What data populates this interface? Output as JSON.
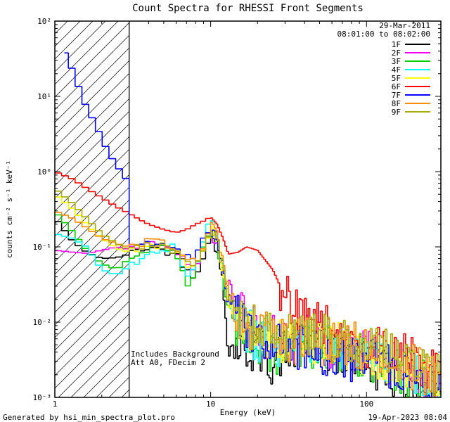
{
  "title": "Count Spectra for RHESSI Front Segments",
  "annotations": {
    "date": "29-Mar-2011",
    "time_range": "08:01:00 to 08:02:00",
    "note_line1": "Includes Background",
    "note_line2": "Att A0, FDecim 2"
  },
  "footer": {
    "left": "Generated by hsi_min_spectra_plot.pro",
    "right": "19-Apr-2023 08:04"
  },
  "axes": {
    "xlabel": "Energy (keV)",
    "ylabel": "counts cm⁻² s⁻¹ keV⁻¹"
  },
  "chart_data": {
    "type": "line",
    "title": "Count Spectra for RHESSI Front Segments",
    "x_scale": "log",
    "y_scale": "log",
    "xlim": [
      1,
      300
    ],
    "ylim": [
      0.001,
      100
    ],
    "x_ticks": [
      1,
      10,
      100
    ],
    "y_tick_exponents": [
      -3,
      -2,
      -1,
      0,
      1,
      2
    ],
    "xlabel": "Energy (keV)",
    "ylabel": "counts cm⁻² s⁻¹ keV⁻¹",
    "hatch_region_kev": [
      1,
      3
    ],
    "legend_position": "upper right",
    "bins": [
      {
        "from": 1,
        "to": 3,
        "n": 11
      },
      {
        "from": 3,
        "to": 10,
        "n": 16
      },
      {
        "from": 10,
        "to": 30,
        "n": 42
      },
      {
        "from": 30,
        "to": 100,
        "n": 46
      },
      {
        "from": 100,
        "to": 300,
        "n": 40
      }
    ],
    "noise": {
      "seed": 42,
      "default_from_kev": 3,
      "levels": [
        {
          "from": 3,
          "dex": 0.05
        },
        {
          "from": 10,
          "dex": 0.12
        },
        {
          "from": 14,
          "dex": 0.32
        }
      ]
    },
    "series": [
      {
        "name": "1F",
        "color": "#000000",
        "points": [
          [
            1,
            0.25
          ],
          [
            1.3,
            0.12
          ],
          [
            1.6,
            0.085
          ],
          [
            2,
            0.07
          ],
          [
            2.5,
            0.072
          ],
          [
            3,
            0.08
          ],
          [
            3.5,
            0.09
          ],
          [
            4,
            0.1
          ],
          [
            5,
            0.09
          ],
          [
            6,
            0.08
          ],
          [
            7,
            0.05
          ],
          [
            8,
            0.04
          ],
          [
            9,
            0.08
          ],
          [
            10,
            0.15
          ],
          [
            11,
            0.1
          ],
          [
            12,
            0.03
          ],
          [
            13,
            0.0045
          ],
          [
            15,
            0.005
          ],
          [
            17,
            0.004
          ],
          [
            20,
            0.0045
          ],
          [
            25,
            0.003
          ],
          [
            30,
            0.004
          ],
          [
            40,
            0.005
          ],
          [
            60,
            0.004
          ],
          [
            80,
            0.0035
          ],
          [
            100,
            0.003
          ],
          [
            150,
            0.002
          ],
          [
            200,
            0.0015
          ],
          [
            300,
            0.0011
          ]
        ]
      },
      {
        "name": "2F",
        "color": "#ff00ff",
        "points": [
          [
            1,
            0.09
          ],
          [
            1.3,
            0.085
          ],
          [
            1.6,
            0.082
          ],
          [
            2,
            0.09
          ],
          [
            2.5,
            0.1
          ],
          [
            3,
            0.092
          ],
          [
            3.5,
            0.1
          ],
          [
            4,
            0.11
          ],
          [
            5,
            0.1
          ],
          [
            6,
            0.09
          ],
          [
            7,
            0.06
          ],
          [
            8,
            0.05
          ],
          [
            9,
            0.09
          ],
          [
            10,
            0.16
          ],
          [
            11,
            0.12
          ],
          [
            12,
            0.06
          ],
          [
            13,
            0.03
          ],
          [
            15,
            0.015
          ],
          [
            17,
            0.01
          ],
          [
            20,
            0.008
          ],
          [
            25,
            0.006
          ],
          [
            30,
            0.005
          ],
          [
            40,
            0.006
          ],
          [
            60,
            0.005
          ],
          [
            80,
            0.0045
          ],
          [
            100,
            0.004
          ],
          [
            150,
            0.003
          ],
          [
            200,
            0.002
          ],
          [
            300,
            0.0016
          ]
        ]
      },
      {
        "name": "3F",
        "color": "#00cc00",
        "points": [
          [
            1,
            0.3
          ],
          [
            1.3,
            0.16
          ],
          [
            1.6,
            0.09
          ],
          [
            2,
            0.06
          ],
          [
            2.5,
            0.05
          ],
          [
            3,
            0.07
          ],
          [
            3.5,
            0.085
          ],
          [
            4,
            0.095
          ],
          [
            5,
            0.1
          ],
          [
            6,
            0.09
          ],
          [
            7,
            0.03
          ],
          [
            8,
            0.05
          ],
          [
            9,
            0.1
          ],
          [
            10,
            0.17
          ],
          [
            11,
            0.1
          ],
          [
            12,
            0.04
          ],
          [
            13,
            0.015
          ],
          [
            15,
            0.008
          ],
          [
            17,
            0.006
          ],
          [
            20,
            0.005
          ],
          [
            25,
            0.004
          ],
          [
            30,
            0.0045
          ],
          [
            40,
            0.005
          ],
          [
            60,
            0.0045
          ],
          [
            80,
            0.004
          ],
          [
            100,
            0.0035
          ],
          [
            150,
            0.0025
          ],
          [
            200,
            0.002
          ],
          [
            300,
            0.0013
          ]
        ]
      },
      {
        "name": "4F",
        "color": "#00ffff",
        "points": [
          [
            1,
            0.15
          ],
          [
            1.3,
            0.13
          ],
          [
            1.6,
            0.1
          ],
          [
            2,
            0.05
          ],
          [
            2.5,
            0.042
          ],
          [
            3,
            0.055
          ],
          [
            3.5,
            0.07
          ],
          [
            4,
            0.08
          ],
          [
            5,
            0.09
          ],
          [
            6,
            0.1
          ],
          [
            7,
            0.04
          ],
          [
            8,
            0.05
          ],
          [
            9,
            0.12
          ],
          [
            10,
            0.27
          ],
          [
            11,
            0.15
          ],
          [
            12,
            0.05
          ],
          [
            13,
            0.02
          ],
          [
            15,
            0.01
          ],
          [
            17,
            0.008
          ],
          [
            20,
            0.006
          ],
          [
            25,
            0.005
          ],
          [
            30,
            0.005
          ],
          [
            40,
            0.006
          ],
          [
            60,
            0.005
          ],
          [
            80,
            0.0045
          ],
          [
            100,
            0.004
          ],
          [
            150,
            0.003
          ],
          [
            200,
            0.0022
          ],
          [
            300,
            0.0016
          ]
        ]
      },
      {
        "name": "5F",
        "color": "#ffff00",
        "points": [
          [
            1,
            0.5
          ],
          [
            1.3,
            0.32
          ],
          [
            1.6,
            0.2
          ],
          [
            2,
            0.13
          ],
          [
            2.5,
            0.095
          ],
          [
            3,
            0.085
          ],
          [
            3.5,
            0.092
          ],
          [
            4,
            0.1
          ],
          [
            5,
            0.11
          ],
          [
            6,
            0.1
          ],
          [
            7,
            0.06
          ],
          [
            8,
            0.06
          ],
          [
            9,
            0.1
          ],
          [
            10,
            0.18
          ],
          [
            11,
            0.12
          ],
          [
            12,
            0.05
          ],
          [
            13,
            0.02
          ],
          [
            15,
            0.011
          ],
          [
            17,
            0.008
          ],
          [
            20,
            0.007
          ],
          [
            25,
            0.0055
          ],
          [
            30,
            0.005
          ],
          [
            40,
            0.006
          ],
          [
            60,
            0.005
          ],
          [
            80,
            0.0045
          ],
          [
            100,
            0.004
          ],
          [
            150,
            0.003
          ],
          [
            200,
            0.0022
          ],
          [
            300,
            0.0016
          ]
        ]
      },
      {
        "name": "6F",
        "color": "#ff0000",
        "noise_from_kev": 28,
        "points": [
          [
            1,
            1.0
          ],
          [
            1.3,
            0.8
          ],
          [
            1.6,
            0.6
          ],
          [
            2,
            0.45
          ],
          [
            2.5,
            0.34
          ],
          [
            3,
            0.28
          ],
          [
            3.5,
            0.23
          ],
          [
            4,
            0.2
          ],
          [
            5,
            0.17
          ],
          [
            6,
            0.155
          ],
          [
            7,
            0.17
          ],
          [
            8,
            0.2
          ],
          [
            9,
            0.22
          ],
          [
            10,
            0.25
          ],
          [
            11,
            0.2
          ],
          [
            12,
            0.13
          ],
          [
            13,
            0.08
          ],
          [
            15,
            0.085
          ],
          [
            17,
            0.1
          ],
          [
            20,
            0.09
          ],
          [
            25,
            0.05
          ],
          [
            30,
            0.022
          ],
          [
            40,
            0.011
          ],
          [
            60,
            0.008
          ],
          [
            80,
            0.006
          ],
          [
            100,
            0.005
          ],
          [
            150,
            0.004
          ],
          [
            200,
            0.003
          ],
          [
            300,
            0.002
          ]
        ]
      },
      {
        "name": "7F",
        "color": "#0000ff",
        "points": [
          [
            1.15,
            45
          ],
          [
            1.3,
            22
          ],
          [
            1.45,
            12
          ],
          [
            1.6,
            7
          ],
          [
            1.8,
            4.5
          ],
          [
            2.0,
            2.8
          ],
          [
            2.2,
            1.8
          ],
          [
            2.5,
            1.2
          ],
          [
            2.8,
            0.85
          ],
          [
            2.95,
            0.75
          ],
          [
            3.0,
            0.12
          ],
          [
            3.5,
            0.105
          ],
          [
            4,
            0.11
          ],
          [
            5,
            0.1
          ],
          [
            6,
            0.09
          ],
          [
            7,
            0.07
          ],
          [
            8,
            0.08
          ],
          [
            9,
            0.12
          ],
          [
            10,
            0.18
          ],
          [
            11,
            0.12
          ],
          [
            12,
            0.05
          ],
          [
            13,
            0.02
          ],
          [
            15,
            0.012
          ],
          [
            17,
            0.008
          ],
          [
            20,
            0.006
          ],
          [
            25,
            0.005
          ],
          [
            30,
            0.0045
          ],
          [
            40,
            0.0045
          ],
          [
            60,
            0.0035
          ],
          [
            80,
            0.003
          ],
          [
            100,
            0.003
          ],
          [
            150,
            0.0025
          ],
          [
            200,
            0.002
          ],
          [
            300,
            0.0016
          ]
        ]
      },
      {
        "name": "8F",
        "color": "#ff8c00",
        "points": [
          [
            1,
            0.3
          ],
          [
            1.3,
            0.24
          ],
          [
            1.6,
            0.18
          ],
          [
            2,
            0.13
          ],
          [
            2.5,
            0.11
          ],
          [
            3,
            0.1
          ],
          [
            3.5,
            0.11
          ],
          [
            4,
            0.12
          ],
          [
            5,
            0.11
          ],
          [
            6,
            0.1
          ],
          [
            7,
            0.07
          ],
          [
            8,
            0.06
          ],
          [
            9,
            0.11
          ],
          [
            10,
            0.19
          ],
          [
            11,
            0.13
          ],
          [
            12,
            0.06
          ],
          [
            13,
            0.025
          ],
          [
            15,
            0.013
          ],
          [
            17,
            0.009
          ],
          [
            20,
            0.0075
          ],
          [
            25,
            0.006
          ],
          [
            30,
            0.0055
          ],
          [
            40,
            0.006
          ],
          [
            60,
            0.0055
          ],
          [
            80,
            0.005
          ],
          [
            100,
            0.0045
          ],
          [
            150,
            0.003
          ],
          [
            200,
            0.0025
          ],
          [
            300,
            0.0017
          ]
        ]
      },
      {
        "name": "9F",
        "color": "#aaaa00",
        "points": [
          [
            1,
            0.6
          ],
          [
            1.3,
            0.38
          ],
          [
            1.6,
            0.24
          ],
          [
            2,
            0.15
          ],
          [
            2.5,
            0.11
          ],
          [
            3,
            0.092
          ],
          [
            3.5,
            0.1
          ],
          [
            4,
            0.11
          ],
          [
            5,
            0.1
          ],
          [
            6,
            0.09
          ],
          [
            7,
            0.06
          ],
          [
            8,
            0.05
          ],
          [
            9,
            0.09
          ],
          [
            10,
            0.17
          ],
          [
            11,
            0.12
          ],
          [
            12,
            0.05
          ],
          [
            13,
            0.022
          ],
          [
            15,
            0.011
          ],
          [
            17,
            0.009
          ],
          [
            20,
            0.008
          ],
          [
            25,
            0.0065
          ],
          [
            30,
            0.006
          ],
          [
            40,
            0.007
          ],
          [
            60,
            0.006
          ],
          [
            80,
            0.0055
          ],
          [
            100,
            0.005
          ],
          [
            150,
            0.0035
          ],
          [
            200,
            0.003
          ],
          [
            300,
            0.002
          ]
        ]
      }
    ]
  }
}
